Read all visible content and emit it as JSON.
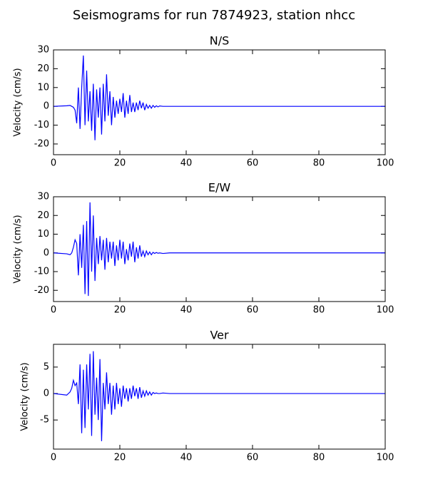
{
  "title": "Seismograms for run 7874923, station nhcc",
  "chart_data": [
    {
      "type": "line",
      "title": "N/S",
      "ylabel": "Velocity (cm/s)",
      "x": [
        0,
        4,
        5,
        5.5,
        6,
        6.5,
        7,
        7.5,
        8,
        8.5,
        9,
        9.5,
        10,
        10.5,
        11,
        11.5,
        12,
        12.5,
        13,
        13.5,
        14,
        14.5,
        15,
        15.5,
        16,
        16.5,
        17,
        17.5,
        18,
        18.5,
        19,
        19.5,
        20,
        20.5,
        21,
        21.5,
        22,
        22.5,
        23,
        23.5,
        24,
        24.5,
        25,
        25.5,
        26,
        26.5,
        27,
        27.5,
        28,
        28.5,
        29,
        29.5,
        30,
        30.5,
        31,
        31.5,
        32,
        33,
        35,
        100
      ],
      "series": [
        {
          "color": "#0000ff",
          "values": [
            0,
            0.3,
            0.5,
            0,
            -0.5,
            -2,
            -9,
            10,
            -12,
            10,
            27,
            -10,
            19,
            -8,
            8,
            -13,
            12,
            -18,
            9,
            -6,
            10,
            -15,
            12,
            -8,
            17,
            -5,
            8,
            -10,
            5,
            -6,
            3,
            -4,
            4,
            -3,
            7,
            -6,
            3,
            -4,
            6,
            -3,
            2,
            -3,
            2,
            -2,
            3,
            -1,
            2,
            -2,
            1,
            -1,
            0.5,
            -1,
            0.5,
            -0.5,
            0.3,
            -0.3,
            0.2,
            0,
            0,
            0
          ]
        }
      ],
      "xlim": [
        0,
        100
      ],
      "xticks": [
        0,
        20,
        40,
        60,
        80,
        100
      ],
      "ylim": [
        -25.7,
        30
      ],
      "yticks": [
        -20,
        -10,
        0,
        10,
        20,
        30
      ]
    },
    {
      "type": "line",
      "title": "E/W",
      "ylabel": "Velocity (cm/s)",
      "x": [
        0,
        4,
        5,
        5.5,
        6,
        6.5,
        7,
        7.5,
        8,
        8.5,
        9,
        9.5,
        10,
        10.5,
        11,
        11.5,
        12,
        12.5,
        13,
        13.5,
        14,
        14.5,
        15,
        15.5,
        16,
        16.5,
        17,
        17.5,
        18,
        18.5,
        19,
        19.5,
        20,
        20.5,
        21,
        21.5,
        22,
        22.5,
        23,
        23.5,
        24,
        24.5,
        25,
        25.5,
        26,
        26.5,
        27,
        27.5,
        28,
        28.5,
        29,
        29.5,
        30,
        30.5,
        31,
        31.5,
        32,
        33,
        35,
        100
      ],
      "series": [
        {
          "color": "#0000ff",
          "values": [
            0,
            -0.5,
            -1,
            0,
            3,
            7,
            5,
            -12,
            10,
            -8,
            15,
            -22,
            17,
            -23,
            27,
            -10,
            20,
            -15,
            8,
            -6,
            9,
            -4,
            7,
            -9,
            8,
            -5,
            6,
            -3,
            6,
            -7,
            4,
            -4,
            7,
            -3,
            6,
            -6,
            2,
            -4,
            5,
            -2,
            6,
            -5,
            3,
            -3,
            4,
            -2,
            1,
            -2,
            1,
            -1,
            0.5,
            -1,
            0.3,
            -0.3,
            0.2,
            -0.2,
            0,
            -0.3,
            0,
            0
          ]
        }
      ],
      "xlim": [
        0,
        100
      ],
      "xticks": [
        0,
        20,
        40,
        60,
        80,
        100
      ],
      "ylim": [
        -26,
        30
      ],
      "yticks": [
        -20,
        -10,
        0,
        10,
        20,
        30
      ]
    },
    {
      "type": "line",
      "title": "Ver",
      "ylabel": "Velocity (cm/s)",
      "x": [
        0,
        4,
        5,
        5.5,
        6,
        6.5,
        7,
        7.5,
        8,
        8.5,
        9,
        9.5,
        10,
        10.5,
        11,
        11.5,
        12,
        12.5,
        13,
        13.5,
        14,
        14.5,
        15,
        15.5,
        16,
        16.5,
        17,
        17.5,
        18,
        18.5,
        19,
        19.5,
        20,
        20.5,
        21,
        21.5,
        22,
        22.5,
        23,
        23.5,
        24,
        24.5,
        25,
        25.5,
        26,
        26.5,
        27,
        27.5,
        28,
        28.5,
        29,
        29.5,
        30,
        30.5,
        31,
        31.5,
        32,
        33,
        35,
        100
      ],
      "series": [
        {
          "color": "#0000ff",
          "values": [
            0,
            -0.3,
            0.3,
            1,
            2.5,
            1.5,
            2,
            -2,
            5.5,
            -7.5,
            4.5,
            -6.5,
            5.5,
            -3,
            7.5,
            -8,
            8,
            -4,
            3,
            -5,
            6.5,
            -9,
            2,
            -3,
            4,
            -2,
            2,
            -4,
            1.5,
            -3,
            2,
            -2,
            1,
            -2.5,
            1.5,
            -1,
            1,
            -1.5,
            1,
            -1,
            1.5,
            -0.5,
            1,
            -1,
            1.2,
            -0.8,
            0.5,
            -0.5,
            0.5,
            -0.3,
            0.3,
            -0.3,
            0.2,
            0,
            0.1,
            0,
            0,
            0.1,
            0,
            0
          ]
        }
      ],
      "xlim": [
        0,
        100
      ],
      "xticks": [
        0,
        20,
        40,
        60,
        80,
        100
      ],
      "ylim": [
        -10.5,
        9.3
      ],
      "yticks": [
        -5,
        0,
        5
      ]
    }
  ]
}
